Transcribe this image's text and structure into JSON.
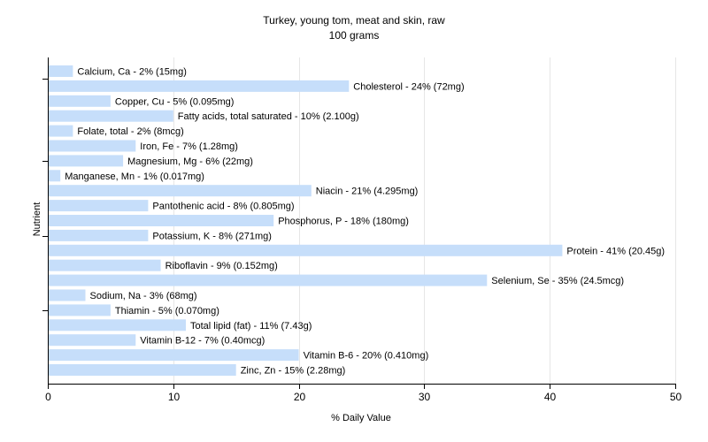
{
  "chart_data": {
    "type": "bar",
    "orientation": "horizontal",
    "title": "Turkey, young tom, meat and skin, raw",
    "subtitle": "100 grams",
    "xlabel": "% Daily Value",
    "ylabel": "Nutrient",
    "xlim": [
      0,
      50
    ],
    "xticks": [
      0,
      10,
      20,
      30,
      40,
      50
    ],
    "grid": true,
    "bar_color": "#c6defa",
    "categories": [
      "Calcium, Ca",
      "Cholesterol",
      "Copper, Cu",
      "Fatty acids, total saturated",
      "Folate, total",
      "Iron, Fe",
      "Magnesium, Mg",
      "Manganese, Mn",
      "Niacin",
      "Pantothenic acid",
      "Phosphorus, P",
      "Potassium, K",
      "Protein",
      "Riboflavin",
      "Selenium, Se",
      "Sodium, Na",
      "Thiamin",
      "Total lipid (fat)",
      "Vitamin B-12",
      "Vitamin B-6",
      "Zinc, Zn"
    ],
    "values": [
      2,
      24,
      5,
      10,
      2,
      7,
      6,
      1,
      21,
      8,
      18,
      8,
      41,
      9,
      35,
      3,
      5,
      11,
      7,
      20,
      15
    ],
    "labels": [
      "Calcium, Ca - 2% (15mg)",
      "Cholesterol - 24% (72mg)",
      "Copper, Cu - 5% (0.095mg)",
      "Fatty acids, total saturated - 10% (2.100g)",
      "Folate, total - 2% (8mcg)",
      "Iron, Fe - 7% (1.28mg)",
      "Magnesium, Mg - 6% (22mg)",
      "Manganese, Mn - 1% (0.017mg)",
      "Niacin - 21% (4.295mg)",
      "Pantothenic acid - 8% (0.805mg)",
      "Phosphorus, P - 18% (180mg)",
      "Potassium, K - 8% (271mg)",
      "Protein - 41% (20.45g)",
      "Riboflavin - 9% (0.152mg)",
      "Selenium, Se - 35% (24.5mcg)",
      "Sodium, Na - 3% (68mg)",
      "Thiamin - 5% (0.070mg)",
      "Total lipid (fat) - 11% (7.43g)",
      "Vitamin B-12 - 7% (0.40mcg)",
      "Vitamin B-6 - 20% (0.410mg)",
      "Zinc, Zn - 15% (2.28mg)"
    ]
  }
}
